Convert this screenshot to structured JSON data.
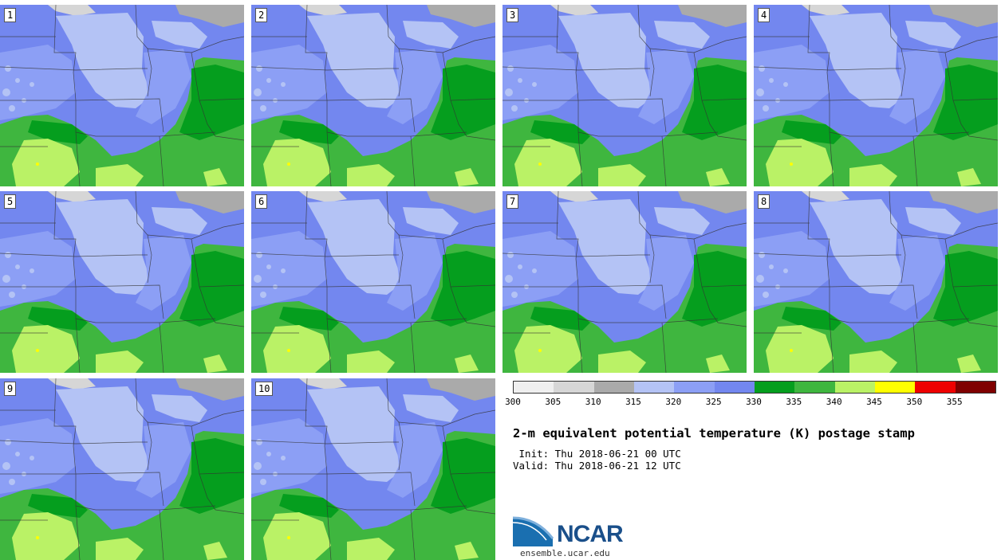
{
  "title": "2-m equivalent potential temperature (K) postage stamp",
  "init": " Init: Thu 2018-06-21 00 UTC",
  "valid": "Valid: Thu 2018-06-21 12 UTC",
  "logo_text": "NCAR",
  "site": "ensemble.ucar.edu",
  "panels": [
    "1",
    "2",
    "3",
    "4",
    "5",
    "6",
    "7",
    "8",
    "9",
    "10"
  ],
  "colorbar": {
    "ticks": [
      "300",
      "305",
      "310",
      "315",
      "320",
      "325",
      "330",
      "335",
      "340",
      "345",
      "350",
      "355"
    ],
    "colors": [
      "#efefef",
      "#d6d6d6",
      "#aaaaaa",
      "#b4c3f5",
      "#8c9ff5",
      "#7387ef",
      "#059e1e",
      "#3fb63f",
      "#baf266",
      "#ffff00",
      "#ee0000",
      "#7f0000"
    ]
  }
}
